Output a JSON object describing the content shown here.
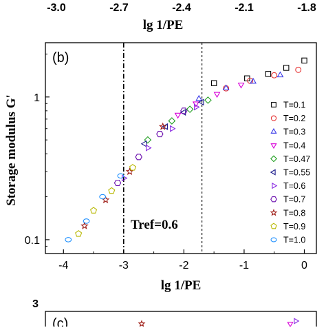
{
  "chart_data": {
    "type": "scatter",
    "panel_label": "(b)",
    "xlabel": "lg 1/PE",
    "ylabel": "Storage modulus G'",
    "x_ticks": [
      "-4",
      "-3",
      "-2",
      "-1",
      "0"
    ],
    "x_tick_values": [
      -4,
      -3,
      -2,
      -1,
      0
    ],
    "y_ticks": [
      "0.1",
      "1"
    ],
    "y_tick_values": [
      0.1,
      1
    ],
    "y_scale": "log",
    "xlim": [
      -4.3,
      0.2
    ],
    "ylim": [
      0.08,
      2.4
    ],
    "grid": false,
    "legend_position": "right",
    "annotation": "Tref=0.6",
    "reference_lines": [
      {
        "x": -3.0,
        "style": "dash-dot"
      },
      {
        "x": -1.7,
        "style": "dashed"
      }
    ],
    "series": [
      {
        "name": "T=0.1",
        "marker": "square",
        "color": "#000000",
        "points": [
          [
            -1.5,
            1.25
          ],
          [
            -0.95,
            1.35
          ],
          [
            -0.6,
            1.45
          ],
          [
            -0.3,
            1.6
          ],
          [
            0.0,
            1.8
          ]
        ]
      },
      {
        "name": "T=0.2",
        "marker": "circle",
        "color": "#e53030",
        "points": [
          [
            -1.3,
            1.15
          ],
          [
            -0.9,
            1.3
          ],
          [
            -0.5,
            1.42
          ],
          [
            -0.1,
            1.55
          ]
        ]
      },
      {
        "name": "T=0.3",
        "marker": "triangle-up",
        "color": "#3a3ae8",
        "points": [
          [
            -1.75,
            0.97
          ],
          [
            -1.3,
            1.15
          ],
          [
            -0.85,
            1.28
          ],
          [
            -0.4,
            1.42
          ]
        ]
      },
      {
        "name": "T=0.4",
        "marker": "triangle-down",
        "color": "#d800d8",
        "points": [
          [
            -2.1,
            0.75
          ],
          [
            -1.8,
            0.9
          ],
          [
            -1.45,
            1.05
          ],
          [
            -1.05,
            1.22
          ]
        ]
      },
      {
        "name": "T=0.47",
        "marker": "diamond",
        "color": "#23a023",
        "points": [
          [
            -2.6,
            0.5
          ],
          [
            -2.2,
            0.68
          ],
          [
            -1.9,
            0.82
          ],
          [
            -1.6,
            0.95
          ]
        ]
      },
      {
        "name": "T=0.55",
        "marker": "triangle-left",
        "color": "#1a1a8a",
        "points": [
          [
            -2.65,
            0.47
          ],
          [
            -2.3,
            0.62
          ],
          [
            -2.0,
            0.78
          ],
          [
            -1.7,
            0.92
          ]
        ]
      },
      {
        "name": "T=0.6",
        "marker": "triangle-right",
        "color": "#8a2be2",
        "points": [
          [
            -3.0,
            0.27
          ],
          [
            -2.6,
            0.44
          ],
          [
            -2.2,
            0.6
          ],
          [
            -1.8,
            0.85
          ]
        ]
      },
      {
        "name": "T=0.7",
        "marker": "hexagon",
        "color": "#6a0dad",
        "points": [
          [
            -3.1,
            0.25
          ],
          [
            -2.75,
            0.38
          ],
          [
            -2.4,
            0.55
          ],
          [
            -2.0,
            0.8
          ]
        ]
      },
      {
        "name": "T=0.8",
        "marker": "star",
        "color": "#a0201a",
        "points": [
          [
            -3.65,
            0.125
          ],
          [
            -3.3,
            0.19
          ],
          [
            -2.9,
            0.3
          ],
          [
            -2.35,
            0.62
          ]
        ]
      },
      {
        "name": "T=0.9",
        "marker": "pentagon",
        "color": "#b8b800",
        "points": [
          [
            -3.75,
            0.11
          ],
          [
            -3.5,
            0.16
          ],
          [
            -3.2,
            0.22
          ],
          [
            -2.85,
            0.32
          ]
        ]
      },
      {
        "name": "T=1.0",
        "marker": "ellipse",
        "color": "#1e90ff",
        "points": [
          [
            -3.92,
            0.1
          ],
          [
            -3.62,
            0.135
          ],
          [
            -3.35,
            0.2
          ],
          [
            -3.05,
            0.28
          ]
        ]
      }
    ]
  },
  "top_partial": {
    "tick_labels": [
      "-3.0",
      "-2.7",
      "-2.4",
      "-2.1",
      "-1.8"
    ],
    "xlabel": "lg 1/PE"
  },
  "bottom_partial": {
    "panel_label": "(c)",
    "y_tick_label": "3"
  }
}
